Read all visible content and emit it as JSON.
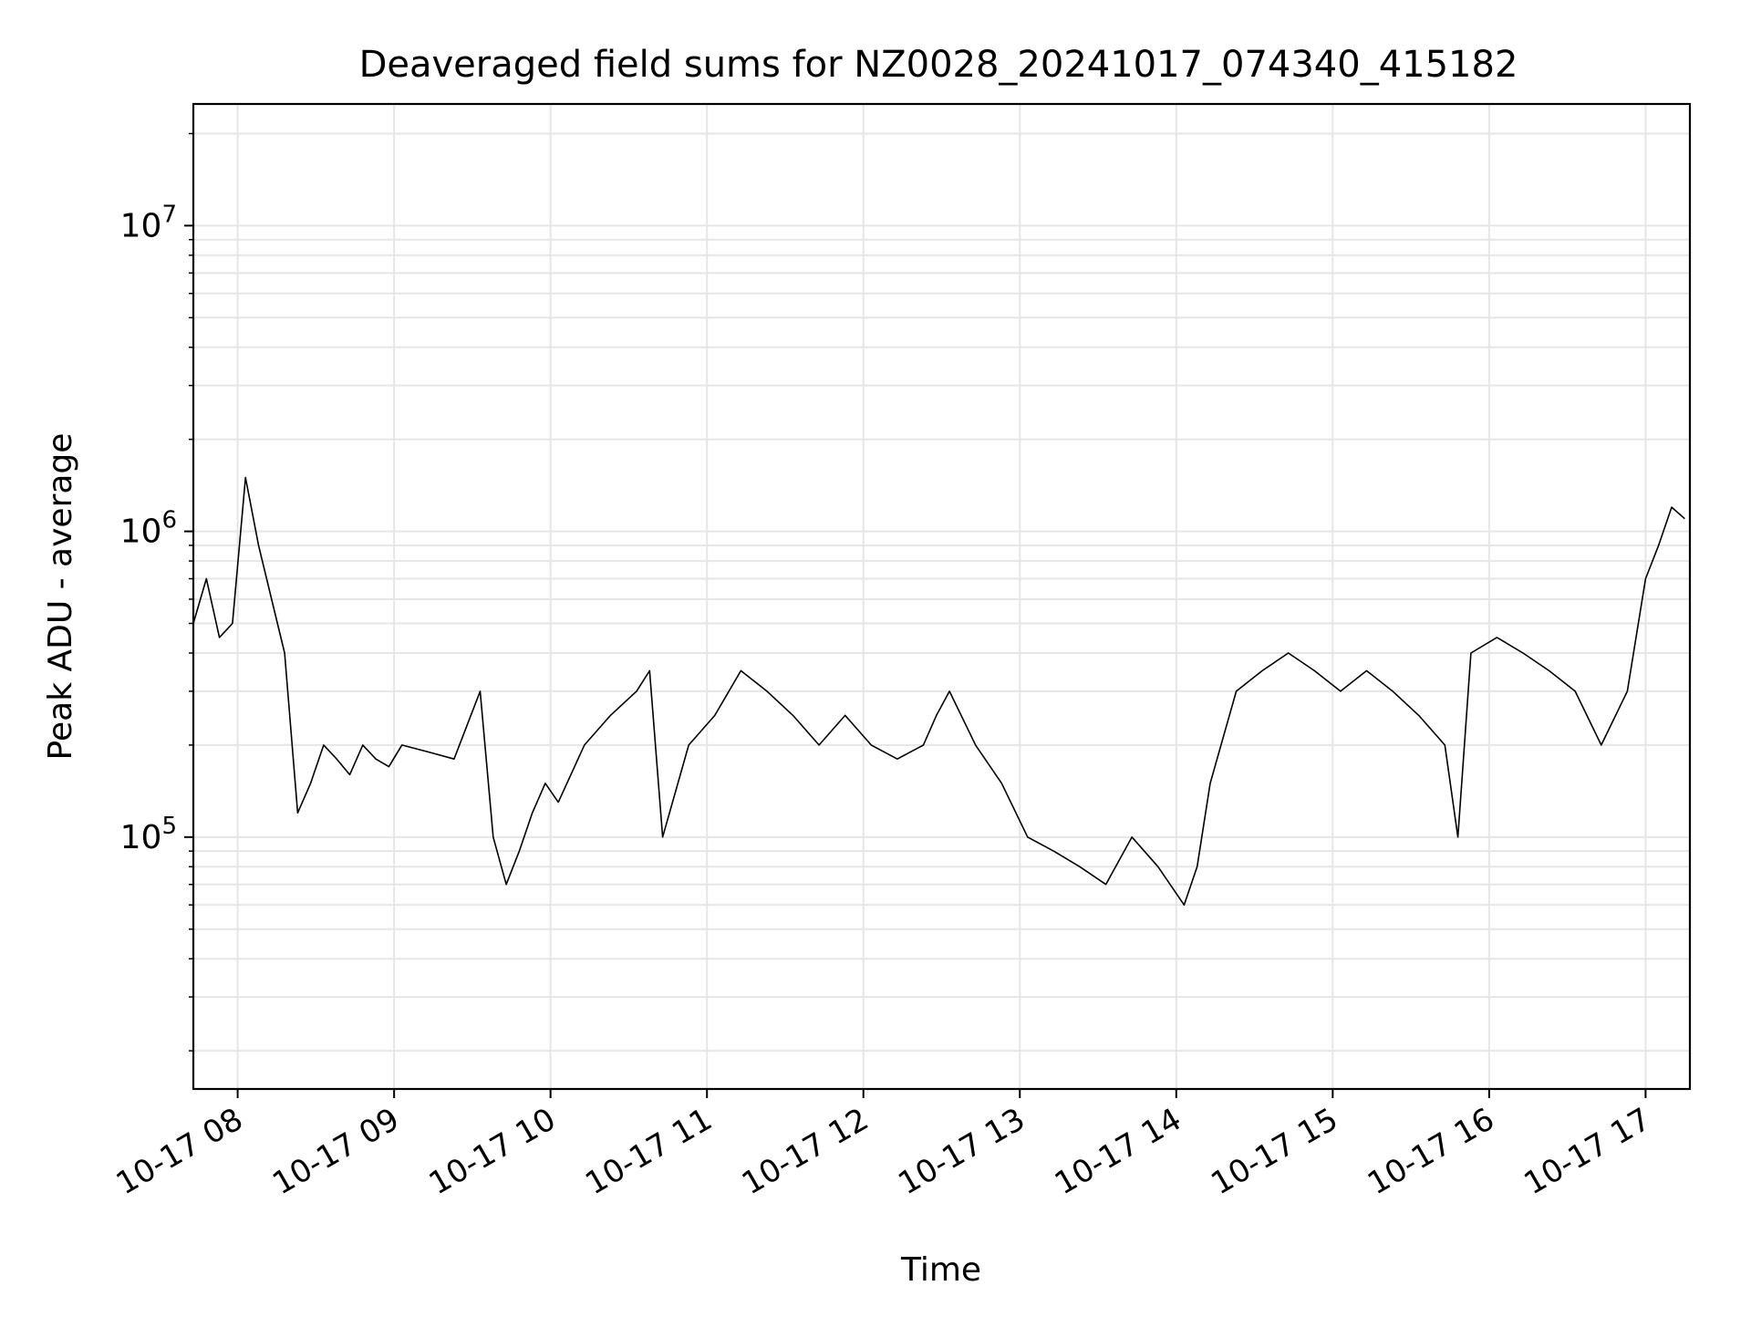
{
  "chart_data": {
    "type": "line",
    "title": "Deaveraged field sums for NZ0028_20241017_074340_415182",
    "xlabel": "Time",
    "ylabel": "Peak ADU - average",
    "yscale": "log",
    "ylim": [
      15000,
      25000000
    ],
    "xlim": [
      "2024-10-17 07:43",
      "2024-10-17 17:17"
    ],
    "grid": true,
    "legend": "none",
    "line_color": "#000000",
    "grid_color": "#e6e6e6",
    "x_tick_labels": [
      "10-17 08",
      "10-17 09",
      "10-17 10",
      "10-17 11",
      "10-17 12",
      "10-17 13",
      "10-17 14",
      "10-17 15",
      "10-17 16",
      "10-17 17"
    ],
    "y_tick_labels": [
      {
        "value": 100000,
        "base": "10",
        "exp": "5"
      },
      {
        "value": 1000000,
        "base": "10",
        "exp": "6"
      },
      {
        "value": 10000000,
        "base": "10",
        "exp": "7"
      }
    ],
    "series": [
      {
        "x": [
          "2024-10-17 07:43",
          "2024-10-17 07:48",
          "2024-10-17 07:53",
          "2024-10-17 07:58",
          "2024-10-17 08:03",
          "2024-10-17 08:08",
          "2024-10-17 08:13",
          "2024-10-17 08:18",
          "2024-10-17 08:23",
          "2024-10-17 08:28",
          "2024-10-17 08:33",
          "2024-10-17 08:38",
          "2024-10-17 08:43",
          "2024-10-17 08:48",
          "2024-10-17 08:53",
          "2024-10-17 08:58",
          "2024-10-17 09:03",
          "2024-10-17 09:13",
          "2024-10-17 09:23",
          "2024-10-17 09:33",
          "2024-10-17 09:38",
          "2024-10-17 09:43",
          "2024-10-17 09:48",
          "2024-10-17 09:53",
          "2024-10-17 09:58",
          "2024-10-17 10:03",
          "2024-10-17 10:13",
          "2024-10-17 10:23",
          "2024-10-17 10:33",
          "2024-10-17 10:38",
          "2024-10-17 10:43",
          "2024-10-17 10:53",
          "2024-10-17 11:03",
          "2024-10-17 11:13",
          "2024-10-17 11:23",
          "2024-10-17 11:33",
          "2024-10-17 11:43",
          "2024-10-17 11:53",
          "2024-10-17 12:03",
          "2024-10-17 12:13",
          "2024-10-17 12:23",
          "2024-10-17 12:28",
          "2024-10-17 12:33",
          "2024-10-17 12:43",
          "2024-10-17 12:53",
          "2024-10-17 13:03",
          "2024-10-17 13:13",
          "2024-10-17 13:23",
          "2024-10-17 13:33",
          "2024-10-17 13:43",
          "2024-10-17 13:53",
          "2024-10-17 14:03",
          "2024-10-17 14:08",
          "2024-10-17 14:13",
          "2024-10-17 14:23",
          "2024-10-17 14:33",
          "2024-10-17 14:43",
          "2024-10-17 14:53",
          "2024-10-17 15:03",
          "2024-10-17 15:13",
          "2024-10-17 15:23",
          "2024-10-17 15:33",
          "2024-10-17 15:43",
          "2024-10-17 15:48",
          "2024-10-17 15:53",
          "2024-10-17 16:03",
          "2024-10-17 16:13",
          "2024-10-17 16:23",
          "2024-10-17 16:33",
          "2024-10-17 16:43",
          "2024-10-17 16:53",
          "2024-10-17 17:00",
          "2024-10-17 17:05",
          "2024-10-17 17:10",
          "2024-10-17 17:15"
        ],
        "y": [
          500000,
          700000,
          450000,
          500000,
          1500000,
          900000,
          600000,
          400000,
          120000,
          150000,
          200000,
          180000,
          160000,
          200000,
          180000,
          170000,
          200000,
          190000,
          180000,
          300000,
          100000,
          70000,
          90000,
          120000,
          150000,
          130000,
          200000,
          250000,
          300000,
          350000,
          100000,
          200000,
          250000,
          350000,
          300000,
          250000,
          200000,
          250000,
          200000,
          180000,
          200000,
          250000,
          300000,
          200000,
          150000,
          100000,
          90000,
          80000,
          70000,
          100000,
          80000,
          60000,
          80000,
          150000,
          300000,
          350000,
          400000,
          350000,
          300000,
          350000,
          300000,
          250000,
          200000,
          100000,
          400000,
          450000,
          400000,
          350000,
          300000,
          200000,
          300000,
          700000,
          900000,
          1200000,
          1100000
        ]
      }
    ]
  }
}
